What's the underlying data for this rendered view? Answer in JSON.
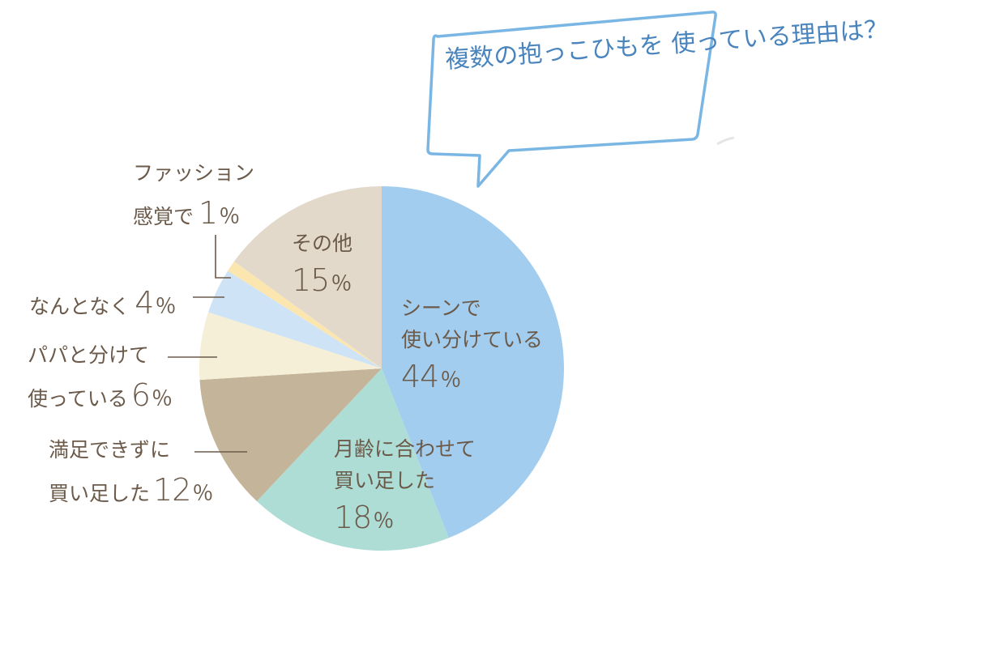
{
  "title": {
    "line1": "複数の抱っこひもを",
    "line2": "使っている理由は？"
  },
  "colors": {
    "scene": "#a3cdee",
    "age": "#aeddd6",
    "unsatisfied": "#c4b59a",
    "papa": "#f4efd6",
    "nantonaku": "#cfe3f6",
    "fashion": "#fbe6b0",
    "other": "#e2d9cb",
    "text": "#6b5a4a",
    "bubble_stroke": "#7ab6e3",
    "bubble_text": "#4a84bd"
  },
  "labels": {
    "scene": {
      "line1": "シーンで",
      "line2": "使い分けている",
      "value": "44",
      "unit": "％"
    },
    "age": {
      "line1": "月齢に合わせて",
      "line2": "買い足した",
      "value": "18",
      "unit": "％"
    },
    "unsatisfied": {
      "line1": "満足できずに",
      "line2": "買い足した",
      "value": "12",
      "unit": "％"
    },
    "papa": {
      "line1": "パパと分けて",
      "line2": "使っている",
      "value": "6",
      "unit": "％"
    },
    "nantonaku": {
      "line1": "なんとなく",
      "value": "4",
      "unit": "％"
    },
    "fashion": {
      "line1": "ファッション",
      "line2": "感覚で",
      "value": "1",
      "unit": "％"
    },
    "other": {
      "line1": "その他",
      "value": "15",
      "unit": "％"
    }
  },
  "chart_data": {
    "type": "pie",
    "title": "複数の抱っこひもを使っている理由は？",
    "start_angle": "12 o'clock",
    "direction": "clockwise",
    "categories": [
      "シーンで使い分けている",
      "月齢に合わせて買い足した",
      "満足できずに買い足した",
      "パパと分けて使っている",
      "なんとなく",
      "ファッション感覚で",
      "その他"
    ],
    "values": [
      44,
      18,
      12,
      6,
      4,
      1,
      15
    ],
    "unit": "%",
    "colors": [
      "#a3cdee",
      "#aeddd6",
      "#c4b59a",
      "#f4efd6",
      "#cfe3f6",
      "#fbe6b0",
      "#e2d9cb"
    ],
    "legend": "none (direct labels)"
  }
}
